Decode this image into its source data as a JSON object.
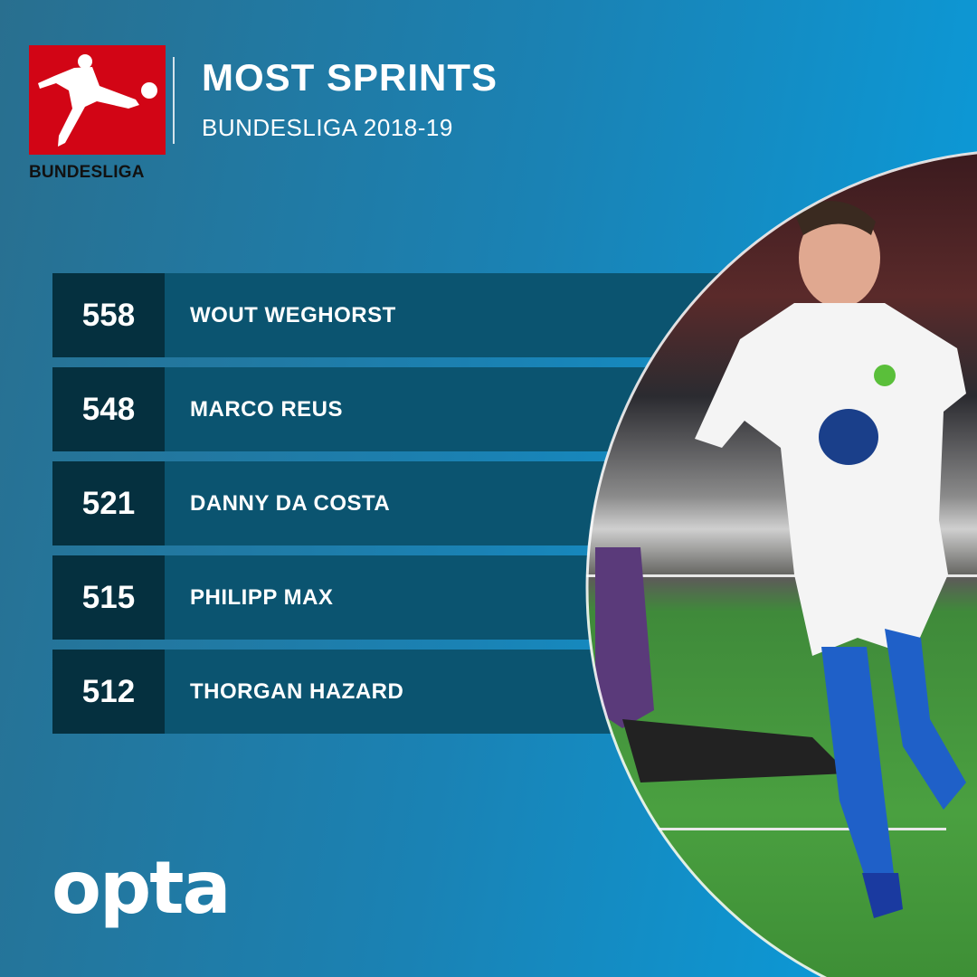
{
  "brand": {
    "league_logo_text": "BUNDESLIGA",
    "provider_logo_text": "opta",
    "logo_color": "#d20515"
  },
  "header": {
    "title": "MOST SPRINTS",
    "subtitle": "BUNDESLIGA 2018-19"
  },
  "rankings": [
    {
      "value": "558",
      "player": "WOUT WEGHORST"
    },
    {
      "value": "548",
      "player": "MARCO REUS"
    },
    {
      "value": "521",
      "player": "DANNY DA COSTA"
    },
    {
      "value": "515",
      "player": "PHILIPP MAX"
    },
    {
      "value": "512",
      "player": "THORGAN HAZARD"
    }
  ]
}
